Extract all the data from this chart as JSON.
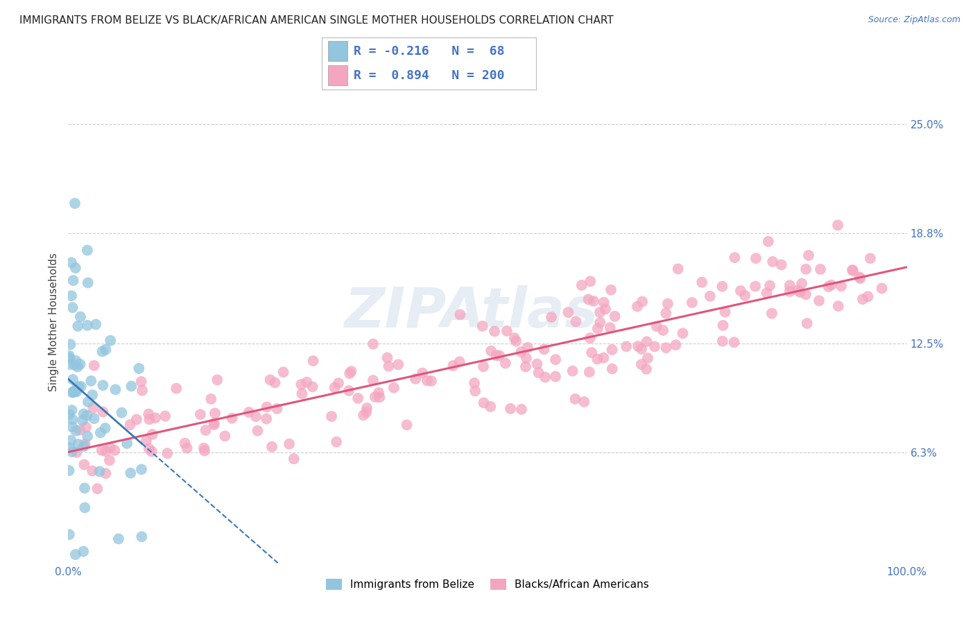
{
  "title": "IMMIGRANTS FROM BELIZE VS BLACK/AFRICAN AMERICAN SINGLE MOTHER HOUSEHOLDS CORRELATION CHART",
  "source": "Source: ZipAtlas.com",
  "ylabel": "Single Mother Households",
  "xlim": [
    0.0,
    1.0
  ],
  "ylim": [
    0.0,
    0.275
  ],
  "yticks": [
    0.063,
    0.125,
    0.188,
    0.25
  ],
  "ytick_labels": [
    "6.3%",
    "12.5%",
    "18.8%",
    "25.0%"
  ],
  "xtick_labels": [
    "0.0%",
    "100.0%"
  ],
  "legend_r1": "R = -0.216",
  "legend_n1": "N =  68",
  "legend_r2": "R =  0.894",
  "legend_n2": "N = 200",
  "color_blue": "#92c5de",
  "color_pink": "#f4a6c0",
  "color_blue_line": "#3a78b5",
  "color_pink_line": "#e0547a",
  "background_color": "#ffffff",
  "watermark": "ZIPAtlas",
  "title_fontsize": 11,
  "axis_label_fontsize": 11,
  "tick_fontsize": 11,
  "legend_fontsize": 13,
  "seed": 42,
  "n_blue": 68,
  "n_pink": 200,
  "r_blue": -0.216,
  "r_pink": 0.894
}
